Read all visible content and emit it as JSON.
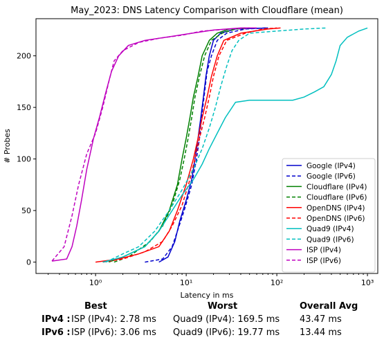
{
  "chart_data": {
    "type": "line",
    "title": "May_2023: DNS Latency Comparison with Cloudflare (mean)",
    "xlabel": "Latency in ms",
    "ylabel": "# Probes",
    "xscale": "log",
    "xlim": [
      0.22,
      1300
    ],
    "ylim": [
      -11,
      236
    ],
    "x_ticks": [
      1,
      10,
      100,
      1000
    ],
    "x_tick_labels": [
      "10⁰",
      "10¹",
      "10²",
      "10³"
    ],
    "y_ticks": [
      0,
      50,
      100,
      150,
      200
    ],
    "y_tick_labels": [
      "0",
      "50",
      "100",
      "150",
      "200"
    ],
    "grid": false,
    "legend_position": "lower-right",
    "series": [
      {
        "name": "Google (IPv4)",
        "color": "#0000cc",
        "dash": "solid",
        "points": [
          [
            5,
            0
          ],
          [
            6.3,
            5
          ],
          [
            7.5,
            20
          ],
          [
            8.5,
            40
          ],
          [
            10,
            60
          ],
          [
            11.5,
            80
          ],
          [
            12.5,
            100
          ],
          [
            13.5,
            120
          ],
          [
            14.5,
            140
          ],
          [
            15.5,
            160
          ],
          [
            16.5,
            180
          ],
          [
            18,
            200
          ],
          [
            20,
            215
          ],
          [
            24,
            222
          ],
          [
            35,
            226
          ],
          [
            80,
            227
          ]
        ]
      },
      {
        "name": "Google (IPv6)",
        "color": "#0000cc",
        "dash": "dashed",
        "points": [
          [
            3.5,
            0
          ],
          [
            5.5,
            3
          ],
          [
            7,
            15
          ],
          [
            8,
            30
          ],
          [
            9.5,
            50
          ],
          [
            11.5,
            75
          ],
          [
            13,
            100
          ],
          [
            14,
            120
          ],
          [
            15,
            145
          ],
          [
            16,
            165
          ],
          [
            17,
            185
          ],
          [
            19,
            200
          ],
          [
            22,
            215
          ],
          [
            28,
            222
          ],
          [
            45,
            226
          ],
          [
            75,
            227
          ]
        ]
      },
      {
        "name": "Cloudflare (IPv4)",
        "color": "#008000",
        "dash": "solid",
        "points": [
          [
            1.4,
            0
          ],
          [
            2,
            5
          ],
          [
            3.5,
            15
          ],
          [
            5,
            30
          ],
          [
            6.5,
            50
          ],
          [
            8,
            75
          ],
          [
            9,
            100
          ],
          [
            10,
            120
          ],
          [
            11,
            140
          ],
          [
            12,
            160
          ],
          [
            13.5,
            180
          ],
          [
            15,
            200
          ],
          [
            18,
            215
          ],
          [
            22,
            222
          ],
          [
            30,
            226
          ],
          [
            45,
            227
          ]
        ]
      },
      {
        "name": "Cloudflare (IPv6)",
        "color": "#008000",
        "dash": "dashed",
        "points": [
          [
            1.6,
            0
          ],
          [
            2.3,
            5
          ],
          [
            4,
            20
          ],
          [
            5.5,
            35
          ],
          [
            7,
            55
          ],
          [
            8.5,
            80
          ],
          [
            9.5,
            100
          ],
          [
            10.5,
            120
          ],
          [
            11.5,
            140
          ],
          [
            12.5,
            160
          ],
          [
            14,
            180
          ],
          [
            16,
            200
          ],
          [
            19,
            215
          ],
          [
            25,
            222
          ],
          [
            35,
            226
          ],
          [
            50,
            227
          ]
        ]
      },
      {
        "name": "OpenDNS (IPv4)",
        "color": "#ff0000",
        "dash": "solid",
        "points": [
          [
            1,
            0
          ],
          [
            1.8,
            3
          ],
          [
            3,
            8
          ],
          [
            5,
            15
          ],
          [
            6.5,
            30
          ],
          [
            8,
            50
          ],
          [
            10,
            75
          ],
          [
            12,
            100
          ],
          [
            13.5,
            120
          ],
          [
            15,
            140
          ],
          [
            17,
            160
          ],
          [
            19,
            180
          ],
          [
            22,
            200
          ],
          [
            26,
            215
          ],
          [
            40,
            222
          ],
          [
            80,
            226
          ],
          [
            110,
            227
          ]
        ]
      },
      {
        "name": "OpenDNS (IPv6)",
        "color": "#ff0000",
        "dash": "dashed",
        "points": [
          [
            1.2,
            0
          ],
          [
            2,
            3
          ],
          [
            3.5,
            10
          ],
          [
            5.5,
            20
          ],
          [
            7,
            35
          ],
          [
            9,
            55
          ],
          [
            11,
            80
          ],
          [
            12.5,
            100
          ],
          [
            14,
            120
          ],
          [
            16,
            140
          ],
          [
            18,
            160
          ],
          [
            20,
            180
          ],
          [
            23,
            200
          ],
          [
            28,
            215
          ],
          [
            45,
            222
          ],
          [
            70,
            226
          ],
          [
            100,
            227
          ]
        ]
      },
      {
        "name": "Quad9 (IPv4)",
        "color": "#00bfbf",
        "dash": "solid",
        "points": [
          [
            1.2,
            0
          ],
          [
            2,
            5
          ],
          [
            3.5,
            15
          ],
          [
            5,
            30
          ],
          [
            7,
            50
          ],
          [
            9,
            65
          ],
          [
            12,
            80
          ],
          [
            15,
            95
          ],
          [
            18,
            110
          ],
          [
            22,
            125
          ],
          [
            27,
            140
          ],
          [
            35,
            155
          ],
          [
            50,
            157
          ],
          [
            150,
            157
          ],
          [
            200,
            160
          ],
          [
            260,
            165
          ],
          [
            330,
            170
          ],
          [
            400,
            182
          ],
          [
            450,
            195
          ],
          [
            500,
            210
          ],
          [
            600,
            218
          ],
          [
            800,
            224
          ],
          [
            1000,
            227
          ]
        ]
      },
      {
        "name": "Quad9 (IPv6)",
        "color": "#00bfbf",
        "dash": "dashed",
        "points": [
          [
            1.3,
            0
          ],
          [
            2,
            8
          ],
          [
            3,
            15
          ],
          [
            4.5,
            30
          ],
          [
            6.5,
            50
          ],
          [
            9,
            70
          ],
          [
            12,
            90
          ],
          [
            15,
            110
          ],
          [
            18,
            130
          ],
          [
            21,
            150
          ],
          [
            24,
            170
          ],
          [
            28,
            190
          ],
          [
            32,
            205
          ],
          [
            38,
            215
          ],
          [
            50,
            222
          ],
          [
            100,
            224
          ],
          [
            200,
            226
          ],
          [
            350,
            227
          ]
        ]
      },
      {
        "name": "ISP (IPv4)",
        "color": "#bf00bf",
        "dash": "solid",
        "points": [
          [
            0.33,
            1
          ],
          [
            0.48,
            3
          ],
          [
            0.55,
            15
          ],
          [
            0.62,
            35
          ],
          [
            0.7,
            60
          ],
          [
            0.8,
            90
          ],
          [
            0.95,
            120
          ],
          [
            1.1,
            140
          ],
          [
            1.3,
            165
          ],
          [
            1.5,
            185
          ],
          [
            1.8,
            200
          ],
          [
            2.3,
            210
          ],
          [
            3.5,
            215
          ],
          [
            6,
            218
          ],
          [
            10,
            221
          ],
          [
            20,
            225
          ],
          [
            40,
            227
          ],
          [
            60,
            227
          ]
        ]
      },
      {
        "name": "ISP (IPv6)",
        "color": "#bf00bf",
        "dash": "dashed",
        "points": [
          [
            0.33,
            1
          ],
          [
            0.45,
            15
          ],
          [
            0.55,
            45
          ],
          [
            0.65,
            75
          ],
          [
            0.8,
            105
          ],
          [
            1,
            125
          ],
          [
            1.2,
            150
          ],
          [
            1.4,
            175
          ],
          [
            1.6,
            195
          ],
          [
            2,
            205
          ],
          [
            3,
            213
          ],
          [
            5,
            217
          ],
          [
            9,
            220
          ],
          [
            15,
            224
          ],
          [
            30,
            226
          ],
          [
            50,
            227
          ]
        ]
      }
    ]
  },
  "stats": {
    "headers": {
      "best": "Best",
      "worst": "Worst",
      "avg": "Overall Avg"
    },
    "rows": [
      {
        "label": "IPv4 :",
        "best": "ISP (IPv4): 2.78 ms",
        "worst": "Quad9 (IPv4): 169.5 ms",
        "avg": "43.47 ms"
      },
      {
        "label": "IPv6 :",
        "best": "ISP (IPv6): 3.06 ms",
        "worst": "Quad9 (IPv6): 19.77 ms",
        "avg": "13.44 ms"
      }
    ]
  }
}
